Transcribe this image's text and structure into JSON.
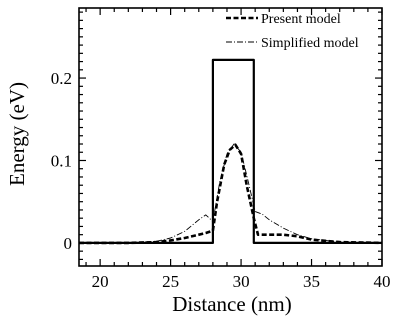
{
  "chart_data": {
    "type": "line",
    "title": "",
    "xlabel": "Distance (nm)",
    "ylabel": "Energy (eV)",
    "xlim": [
      18.5,
      40
    ],
    "ylim": [
      -0.028,
      0.285
    ],
    "xticks": [
      20,
      25,
      30,
      35,
      40
    ],
    "xtick_labels": [
      "20",
      "25",
      "30",
      "35",
      "40"
    ],
    "yticks": [
      0,
      0.1,
      0.2
    ],
    "ytick_labels": [
      "0",
      "0.1",
      "0.2"
    ],
    "grid": false,
    "legend_position": "top-right",
    "series": [
      {
        "name": "",
        "style": "solid",
        "x": [
          18.5,
          28.0,
          28.0,
          29.5,
          29.5,
          30.9,
          30.9,
          40
        ],
        "y": [
          0,
          0,
          0.222,
          0.222,
          0.222,
          0.222,
          0,
          0
        ]
      },
      {
        "name": "Present model",
        "style": "dashed",
        "x": [
          18.5,
          22,
          24,
          25,
          26,
          27,
          27.5,
          28.0,
          28.3,
          28.8,
          29.2,
          29.6,
          30.0,
          30.4,
          30.9,
          31.2,
          32,
          33,
          34,
          35,
          37,
          40
        ],
        "y": [
          0,
          0,
          0.001,
          0.003,
          0.006,
          0.01,
          0.012,
          0.015,
          0.05,
          0.095,
          0.113,
          0.119,
          0.108,
          0.07,
          0.03,
          0.01,
          0.01,
          0.01,
          0.008,
          0.004,
          0.001,
          0
        ]
      },
      {
        "name": "Simplified model",
        "style": "dashdot",
        "x": [
          18.5,
          22,
          24,
          25,
          26,
          27,
          27.5,
          28.0,
          28.5,
          29.0,
          29.5,
          30.0,
          30.5,
          31.0,
          31.5,
          32,
          33,
          34,
          35,
          37,
          40
        ],
        "y": [
          0,
          0,
          0.002,
          0.006,
          0.014,
          0.028,
          0.034,
          0.026,
          0.075,
          0.108,
          0.12,
          0.11,
          0.075,
          0.038,
          0.035,
          0.028,
          0.018,
          0.01,
          0.005,
          0.001,
          0
        ]
      }
    ]
  }
}
